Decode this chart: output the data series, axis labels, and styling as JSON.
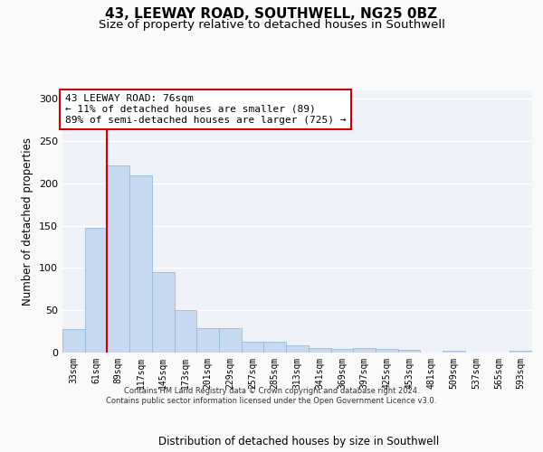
{
  "title1": "43, LEEWAY ROAD, SOUTHWELL, NG25 0BZ",
  "title2": "Size of property relative to detached houses in Southwell",
  "xlabel": "Distribution of detached houses by size in Southwell",
  "ylabel": "Number of detached properties",
  "categories": [
    "33sqm",
    "61sqm",
    "89sqm",
    "117sqm",
    "145sqm",
    "173sqm",
    "201sqm",
    "229sqm",
    "257sqm",
    "285sqm",
    "313sqm",
    "341sqm",
    "369sqm",
    "397sqm",
    "425sqm",
    "453sqm",
    "481sqm",
    "509sqm",
    "537sqm",
    "565sqm",
    "593sqm"
  ],
  "values": [
    28,
    147,
    221,
    210,
    95,
    50,
    29,
    29,
    13,
    13,
    9,
    5,
    4,
    5,
    4,
    3,
    0,
    2,
    0,
    0,
    2
  ],
  "bar_color": "#c6d9f0",
  "bar_edge_color": "#8db4d8",
  "vline_x": 1.5,
  "vline_color": "#cc0000",
  "annotation_text": "43 LEEWAY ROAD: 76sqm\n← 11% of detached houses are smaller (89)\n89% of semi-detached houses are larger (725) →",
  "annotation_box_color": "#ffffff",
  "annotation_box_edge": "#cc0000",
  "ylim": [
    0,
    310
  ],
  "yticks": [
    0,
    50,
    100,
    150,
    200,
    250,
    300
  ],
  "footer": "Contains HM Land Registry data © Crown copyright and database right 2024.\nContains public sector information licensed under the Open Government Licence v3.0.",
  "bg_color": "#eef2f8",
  "grid_color": "#ffffff",
  "fig_color": "#f9f9f9",
  "title1_fontsize": 11,
  "title2_fontsize": 9.5,
  "tick_fontsize": 7,
  "label_fontsize": 8.5,
  "annotation_fontsize": 8,
  "footer_fontsize": 6
}
